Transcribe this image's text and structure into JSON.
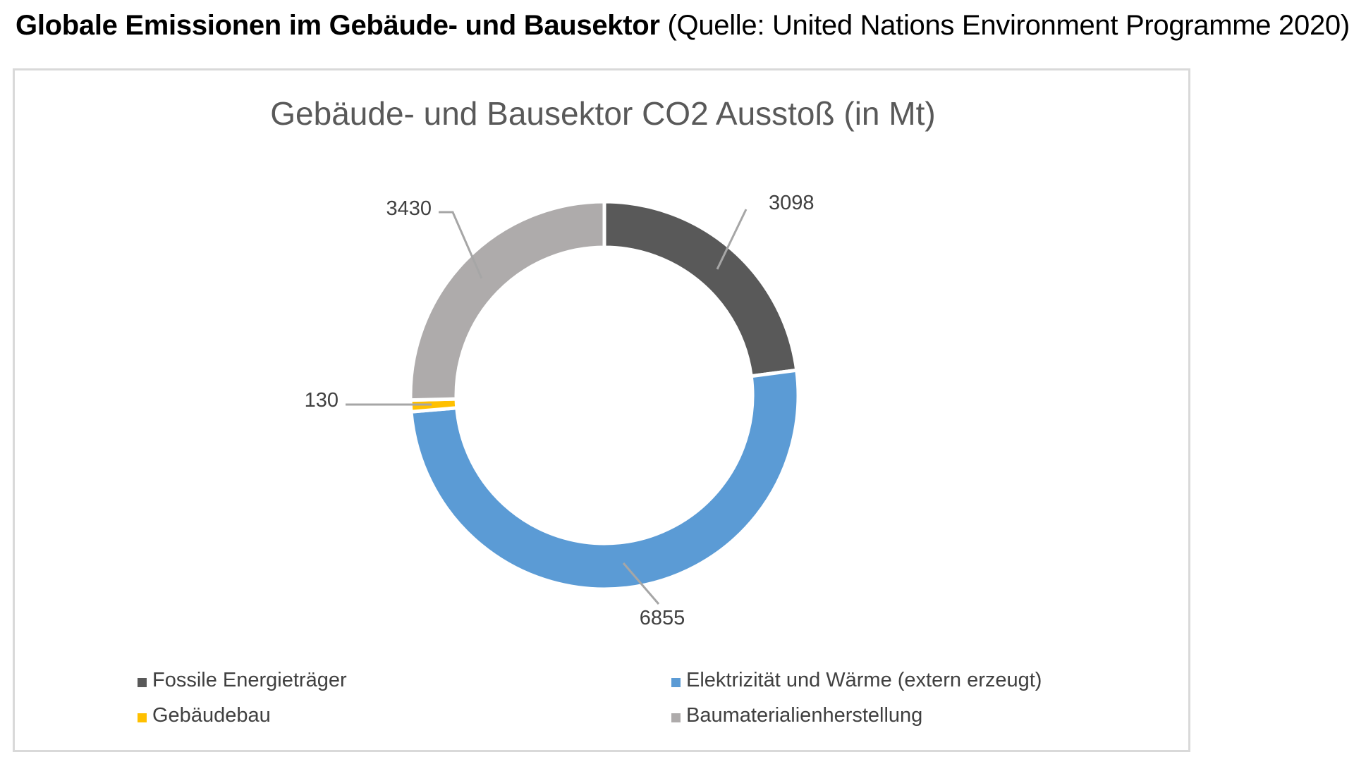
{
  "heading": {
    "bold_text": "Globale Emissionen im Gebäude- und Bausektor",
    "source_text": "(Quelle: United Nations Environment Programme 2020)"
  },
  "chart_data": {
    "type": "pie",
    "subtype": "doughnut",
    "title": "Gebäude- und Bausektor CO2 Ausstoß (in Mt)",
    "start_angle_deg": 0,
    "direction": "clockwise",
    "legend_position": "bottom",
    "slices": [
      {
        "label": "Fossile Energieträger",
        "value": 3098,
        "display": "3098",
        "color": "#595959"
      },
      {
        "label": "Elektrizität und Wärme (extern erzeugt)",
        "value": 6855,
        "display": "6855",
        "color": "#5b9bd5"
      },
      {
        "label": "Gebäudebau",
        "value": 130,
        "display": "130",
        "color": "#ffc000"
      },
      {
        "label": "Baumaterialienherstellung",
        "value": 3430,
        "display": "3430",
        "color": "#aeabab"
      }
    ]
  }
}
